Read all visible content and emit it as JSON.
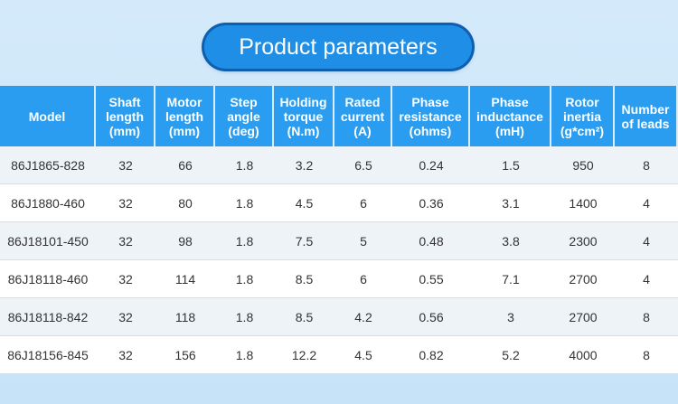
{
  "title": "Product parameters",
  "table": {
    "headers": [
      [
        "Model"
      ],
      [
        "Shaft",
        "length",
        "(mm)"
      ],
      [
        "Motor",
        "length",
        "(mm)"
      ],
      [
        "Step",
        "angle",
        "(deg)"
      ],
      [
        "Holding",
        "torque",
        "(N.m)"
      ],
      [
        "Rated",
        "current",
        "(A)"
      ],
      [
        "Phase",
        "resistance",
        "(ohms)"
      ],
      [
        "Phase",
        "inductance",
        "(mH)"
      ],
      [
        "Rotor",
        "inertia",
        "(g*cm²)"
      ],
      [
        "Number",
        "of leads"
      ]
    ],
    "rows": [
      [
        "86J1865-828",
        "32",
        "66",
        "1.8",
        "3.2",
        "6.5",
        "0.24",
        "1.5",
        "950",
        "8"
      ],
      [
        "86J1880-460",
        "32",
        "80",
        "1.8",
        "4.5",
        "6",
        "0.36",
        "3.1",
        "1400",
        "4"
      ],
      [
        "86J18101-450",
        "32",
        "98",
        "1.8",
        "7.5",
        "5",
        "0.48",
        "3.8",
        "2300",
        "4"
      ],
      [
        "86J18118-460",
        "32",
        "114",
        "1.8",
        "8.5",
        "6",
        "0.55",
        "7.1",
        "2700",
        "4"
      ],
      [
        "86J18118-842",
        "32",
        "118",
        "1.8",
        "8.5",
        "4.2",
        "0.56",
        "3",
        "2700",
        "8"
      ],
      [
        "86J18156-845",
        "32",
        "156",
        "1.8",
        "12.2",
        "4.5",
        "0.82",
        "5.2",
        "4000",
        "8"
      ]
    ]
  }
}
